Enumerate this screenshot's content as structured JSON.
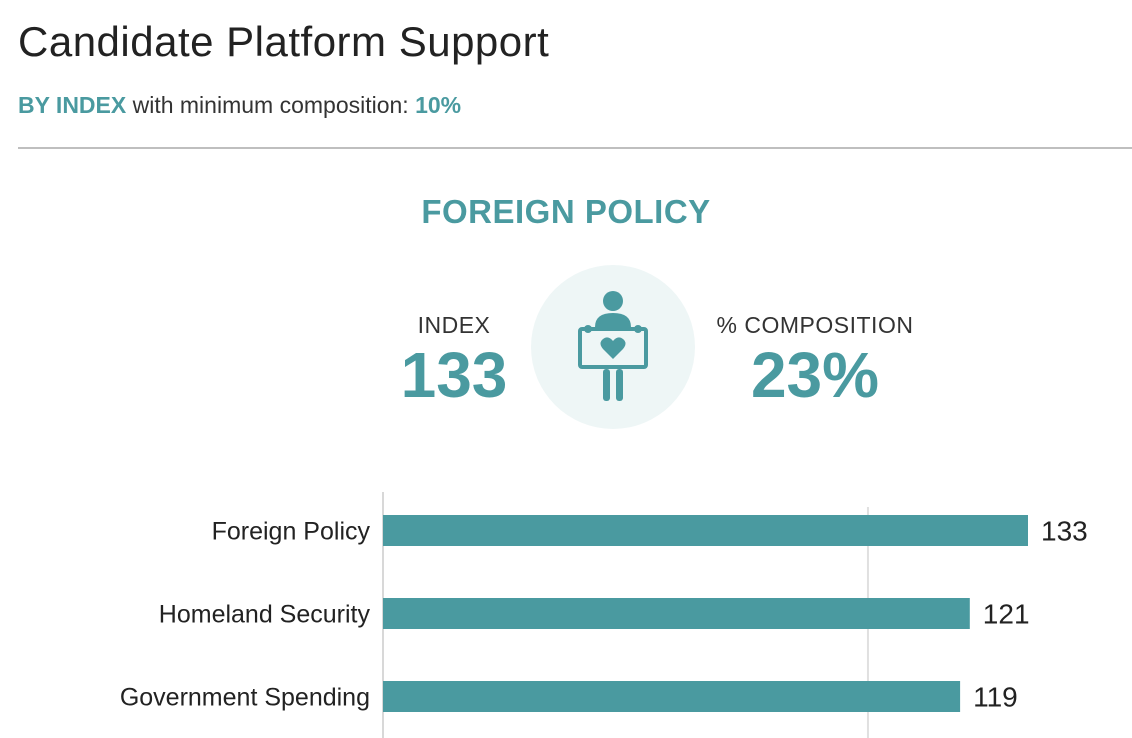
{
  "header": {
    "title": "Candidate Platform Support",
    "subtitle_prefix": "BY INDEX",
    "subtitle_middle": " with minimum composition: ",
    "subtitle_value": "10%"
  },
  "highlight": {
    "name": "FOREIGN POLICY",
    "index_label": "INDEX",
    "index_value": "133",
    "composition_label": "% COMPOSITION",
    "composition_value": "23%",
    "icon": "person-holding-heart-sign-icon"
  },
  "colors": {
    "accent": "#4a9aa0",
    "bar": "#4a9aa0",
    "gridline": "#e0e0e0"
  },
  "chart_data": {
    "type": "bar",
    "orientation": "horizontal",
    "categories": [
      "Foreign Policy",
      "Homeland Security",
      "Government Spending"
    ],
    "values": [
      133,
      121,
      119
    ],
    "reference_line": 100,
    "xlim": [
      0,
      140
    ]
  }
}
